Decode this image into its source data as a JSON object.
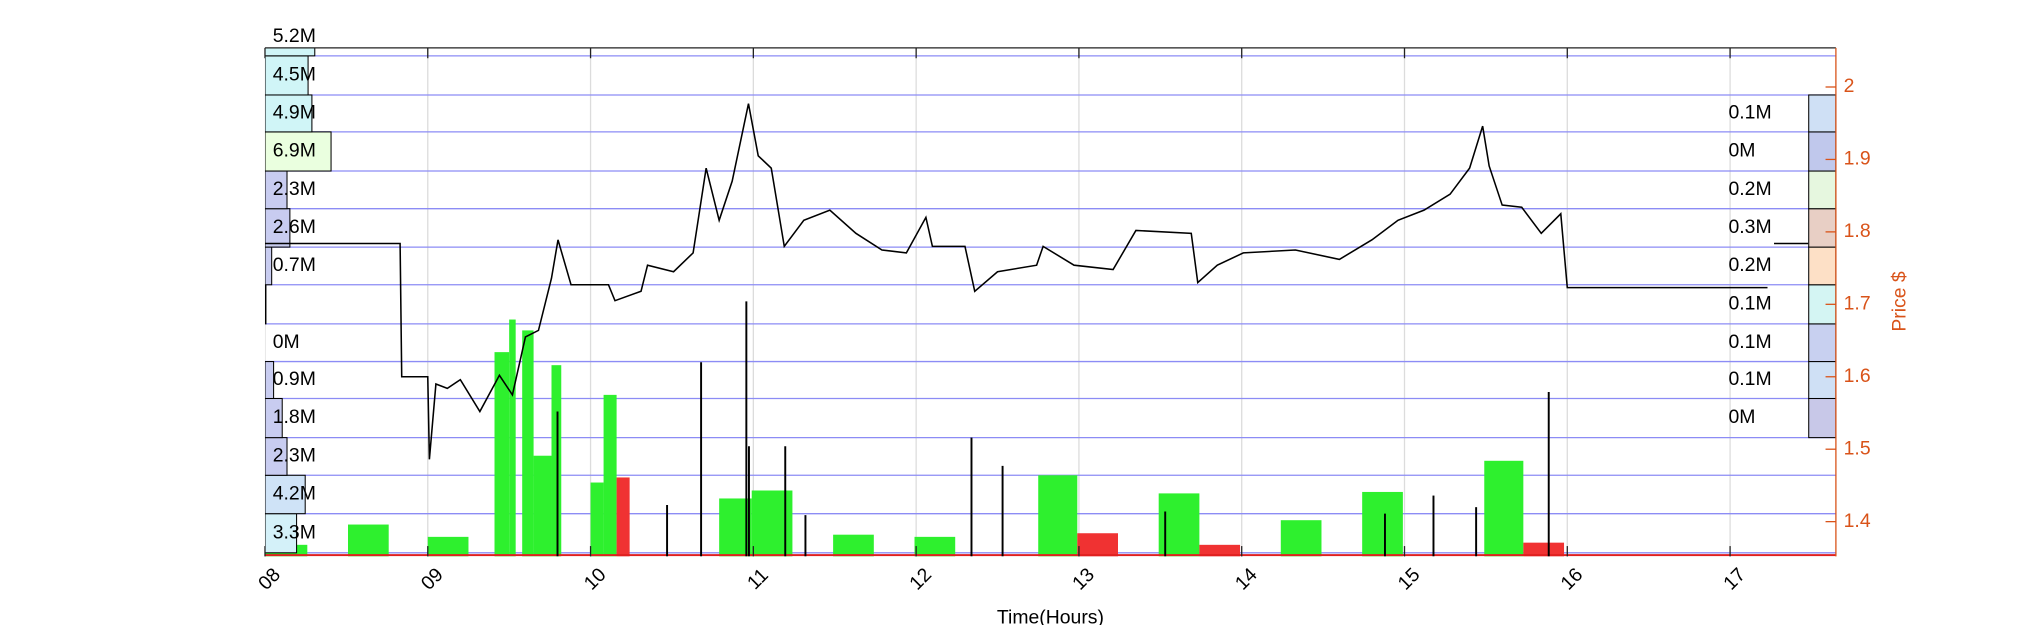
{
  "chart_data": {
    "type": "line",
    "xlabel": "Time(Hours)",
    "ylabel": "Price $",
    "axis_color": "#d95319",
    "xlim": [
      8,
      17.65
    ],
    "ylim": [
      1.352,
      2.054
    ],
    "xticks": [
      {
        "value": 8,
        "label": "08"
      },
      {
        "value": 9,
        "label": "09"
      },
      10,
      11,
      12,
      13,
      14,
      15,
      16,
      17
    ],
    "yticks": [
      1.4,
      1.5,
      1.6,
      1.7,
      1.8,
      1.9,
      2
    ],
    "grid": true,
    "price": {
      "color": "#000000",
      "x": [
        8.0,
        8.83,
        8.84,
        9.0,
        9.01,
        9.05,
        9.12,
        9.2,
        9.32,
        9.44,
        9.52,
        9.6,
        9.68,
        9.76,
        9.8,
        9.88,
        10.11,
        10.15,
        10.31,
        10.35,
        10.51,
        10.63,
        10.71,
        10.79,
        10.87,
        10.97,
        11.03,
        11.11,
        11.19,
        11.31,
        11.47,
        11.63,
        11.79,
        11.94,
        12.06,
        12.1,
        12.3,
        12.36,
        12.5,
        12.74,
        12.78,
        12.97,
        13.21,
        13.35,
        13.69,
        13.73,
        13.85,
        14.01,
        14.33,
        14.6,
        14.8,
        14.96,
        15.12,
        15.28,
        15.4,
        15.48,
        15.52,
        15.6,
        15.72,
        15.84,
        15.96,
        16.0,
        17.23,
        17.25,
        17.27,
        17.48
      ],
      "values": [
        1.784,
        1.784,
        1.6,
        1.6,
        1.486,
        1.59,
        1.584,
        1.596,
        1.552,
        1.602,
        1.575,
        1.655,
        1.664,
        1.736,
        1.789,
        1.727,
        1.727,
        1.705,
        1.718,
        1.754,
        1.745,
        1.771,
        1.888,
        1.816,
        1.87,
        1.977,
        1.905,
        1.888,
        1.78,
        1.816,
        1.83,
        1.798,
        1.775,
        1.771,
        1.82,
        1.78,
        1.78,
        1.718,
        1.745,
        1.754,
        1.78,
        1.754,
        1.748,
        1.802,
        1.798,
        1.73,
        1.754,
        1.771,
        1.775,
        1.762,
        1.789,
        1.816,
        1.83,
        1.852,
        1.888,
        1.946,
        1.891,
        1.837,
        1.834,
        1.798,
        1.825,
        1.723,
        1.723,
        null,
        1.784,
        1.784
      ]
    },
    "volume_bars": {
      "start": [
        8.0,
        8.51,
        9.0,
        9.41,
        9.5,
        9.58,
        9.65,
        9.76,
        10.0,
        10.08,
        10.16,
        10.79,
        10.99,
        11.49,
        11.99,
        12.75,
        12.99,
        13.49,
        13.74,
        14.24,
        14.74,
        15.49,
        15.73
      ],
      "end": [
        8.26,
        8.76,
        9.25,
        9.5,
        9.54,
        9.65,
        9.76,
        9.82,
        10.08,
        10.16,
        10.24,
        10.99,
        11.24,
        11.74,
        12.24,
        12.99,
        13.24,
        13.74,
        13.99,
        14.49,
        14.99,
        15.73,
        15.98
      ],
      "values": [
        1.368,
        1.396,
        1.379,
        1.634,
        1.679,
        1.664,
        1.491,
        1.616,
        1.454,
        1.575,
        1.461,
        1.432,
        1.443,
        1.382,
        1.379,
        1.464,
        1.384,
        1.439,
        1.368,
        1.402,
        1.441,
        1.484,
        1.371
      ],
      "colors": [
        "#2ef02e",
        "#2ef02e",
        "#2ef02e",
        "#2ef02e",
        "#2ef02e",
        "#2ef02e",
        "#2ef02e",
        "#2ef02e",
        "#2ef02e",
        "#2ef02e",
        "#f03232",
        "#2ef02e",
        "#2ef02e",
        "#2ef02e",
        "#2ef02e",
        "#2ef02e",
        "#f03232",
        "#2ef02e",
        "#f03232",
        "#2ef02e",
        "#2ef02e",
        "#2ef02e",
        "#f03232"
      ]
    },
    "volume_spikes": {
      "color": "#000000",
      "x": [
        9.797,
        10.47,
        10.679,
        10.957,
        10.973,
        11.196,
        11.32,
        12.34,
        12.531,
        13.53,
        14.88,
        15.178,
        15.44,
        15.886
      ],
      "values": [
        1.552,
        1.423,
        1.62,
        1.704,
        1.504,
        1.504,
        1.409,
        1.516,
        1.477,
        1.414,
        1.411,
        1.436,
        1.42,
        1.579
      ]
    },
    "profile_left": {
      "bins": [
        1.357,
        1.411,
        1.464,
        1.516,
        1.57,
        1.621,
        1.673,
        1.727,
        1.779,
        1.832,
        1.884,
        1.938,
        1.989,
        2.043,
        2.095
      ],
      "values": [
        3.3,
        4.2,
        2.3,
        1.8,
        0.9,
        0,
        0.1,
        0.7,
        2.6,
        2.3,
        6.9,
        4.9,
        4.5,
        5.2
      ],
      "value_labels": [
        "3.3M",
        "4.2M",
        "2.3M",
        "1.8M",
        "0.9M",
        "0M",
        null,
        "0.7M",
        "2.6M",
        "2.3M",
        "6.9M",
        "4.9M",
        "4.5M",
        "5.2M"
      ],
      "colors": [
        "#d4f1f9",
        "#cfe3f7",
        "#c8ccf0",
        "#c8ccf0",
        "#c8ccf0",
        "#c8ccf0",
        "#aeeef5",
        "#c8ccf0",
        "#c8ccf0",
        "#c8ccf0",
        "#eaffdf",
        "#d0f5f7",
        "#d0f5f7",
        "#d0f5f7"
      ]
    },
    "profile_right": {
      "bins": [
        1.516,
        1.57,
        1.621,
        1.673,
        1.727,
        1.779,
        1.832,
        1.884,
        1.938,
        1.989
      ],
      "values": [
        0,
        0.1,
        0.1,
        0.1,
        0.2,
        0.3,
        0.2,
        0,
        0.1
      ],
      "value_labels": [
        "0M",
        "0.1M",
        "0.1M",
        "0.1M",
        "0.2M",
        "0.3M",
        "0.2M",
        "0M",
        "0.1M"
      ],
      "colors": [
        "#c8c8e8",
        "#cfe0f5",
        "#c8d0f0",
        "#d4f5f3",
        "#fde0c6",
        "#e8cfc5",
        "#e6f7df",
        "#c0c8ec",
        "#cfe0f5"
      ]
    }
  }
}
